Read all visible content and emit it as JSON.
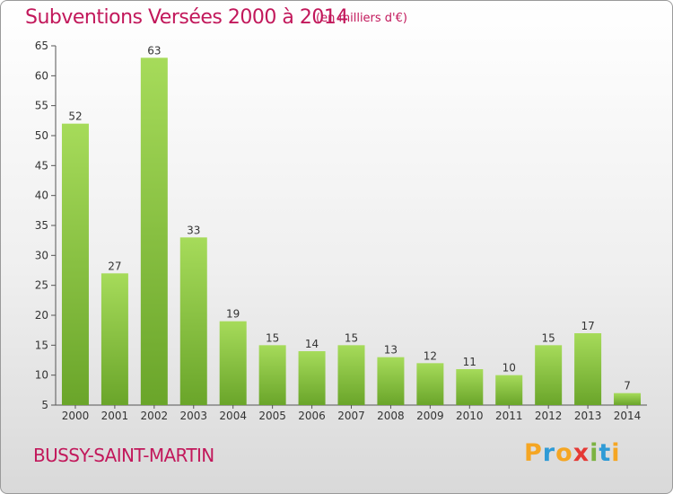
{
  "chart_data": {
    "type": "bar",
    "title": "Subventions Versées 2000 à 2014",
    "subtitle": "(en milliers d'€)",
    "categories": [
      "2000",
      "2001",
      "2002",
      "2003",
      "2004",
      "2005",
      "2006",
      "2007",
      "2008",
      "2009",
      "2010",
      "2011",
      "2012",
      "2013",
      "2014"
    ],
    "values": [
      52,
      27,
      63,
      33,
      19,
      15,
      14,
      15,
      13,
      12,
      11,
      10,
      15,
      17,
      7
    ],
    "ylim": [
      5,
      65
    ],
    "yticks": [
      5,
      10,
      15,
      20,
      25,
      30,
      35,
      40,
      45,
      50,
      55,
      60,
      65
    ],
    "xlabel": "",
    "ylabel": "",
    "grid": false,
    "bar_color_light": "#a6db5a",
    "bar_color_dark": "#6aa52a"
  },
  "footer": {
    "city": "BUSSY-SAINT-MARTIN",
    "logo": [
      "P",
      "r",
      "o",
      "x",
      "i",
      "t",
      "i"
    ],
    "logo_colors": [
      "#f5a623",
      "#2f9bd6",
      "#f5a623",
      "#e53935",
      "#7cb342",
      "#2f9bd6",
      "#f5a623"
    ]
  },
  "colors": {
    "title": "#c2185b",
    "axis": "#555555"
  }
}
